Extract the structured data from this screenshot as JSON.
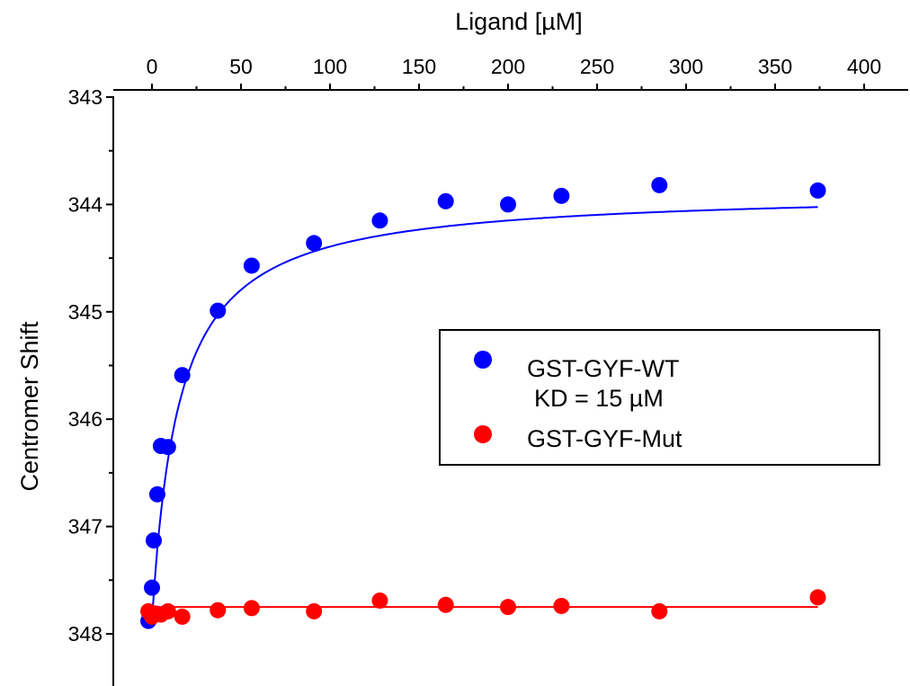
{
  "chart_data": {
    "type": "scatter",
    "title": "",
    "xlabel": "Ligand [µM]",
    "ylabel": "Centromer Shift",
    "x_axis_position": "top",
    "y_inverted": true,
    "xlim": [
      -15,
      412
    ],
    "ylim": [
      343,
      348.5
    ],
    "x_ticks": [
      0,
      50,
      100,
      150,
      200,
      250,
      300,
      350,
      400
    ],
    "y_ticks": [
      343,
      344,
      345,
      346,
      347,
      348
    ],
    "grid": false,
    "legend_position": "center-right",
    "series": [
      {
        "name": "GST-GYF-WT",
        "color": "#0000ff",
        "x": [
          -2,
          0,
          1,
          3,
          5,
          9,
          17,
          37,
          56,
          91,
          128,
          165,
          200,
          230,
          285,
          374
        ],
        "y": [
          347.88,
          347.57,
          347.13,
          346.7,
          346.25,
          346.26,
          345.59,
          344.99,
          344.57,
          344.36,
          344.15,
          343.97,
          344.0,
          343.92,
          343.82,
          343.87
        ],
        "fit": {
          "model": "hyperbolic binding",
          "kd": 15,
          "y0": 347.88,
          "ymax": 343.87
        }
      },
      {
        "name": "GST-GYF-Mut",
        "color": "#ff0000",
        "x": [
          -2,
          0,
          2,
          5,
          9,
          17,
          37,
          56,
          91,
          128,
          165,
          200,
          230,
          285,
          374
        ],
        "y": [
          347.79,
          347.84,
          347.81,
          347.82,
          347.79,
          347.84,
          347.78,
          347.76,
          347.79,
          347.69,
          347.73,
          347.75,
          347.74,
          347.79,
          347.66
        ],
        "fit": {
          "model": "flat",
          "y": 347.75
        }
      }
    ],
    "annotations": [
      "KD = 15 µM"
    ]
  }
}
